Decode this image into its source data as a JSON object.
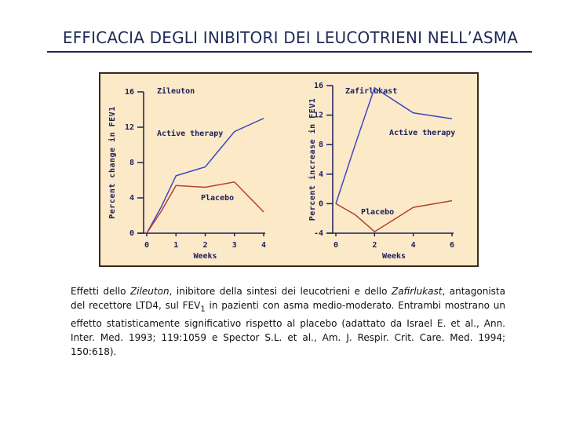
{
  "title": "EFFICACIA DEGLI INIBITORI DEI LEUCOTRIENI NELL’ASMA",
  "caption": [
    "Effetti dello ",
    "Zileuton",
    ", inibitore della sintesi dei leucotrieni e dello ",
    "Zafirlukast",
    ", antagonista del recettore LTD4, sul FEV",
    "1",
    " in  pazienti con asma medio-moderato. Entrambi mostrano un effetto statisticamente significativo rispetto al placebo (adattato da Israel E. et al., Ann. Inter. Med. 1993; 119:1059 e Spector S.L. et al., Am. J. Respir. Crit. Care. Med. 1994; 150:618)."
  ],
  "chart_data": [
    {
      "type": "line",
      "title": "Zileuton",
      "x_label": "Weeks",
      "y_label": "Percent change in FEV1",
      "x": [
        0,
        0.5,
        1,
        2,
        3,
        4
      ],
      "series": [
        {
          "name": "Active therapy",
          "color": "#3a48c4",
          "values": [
            0,
            3,
            6.5,
            7.5,
            11.5,
            13
          ]
        },
        {
          "name": "Placebo",
          "color": "#b2422e",
          "values": [
            0,
            2.5,
            5.4,
            5.2,
            5.8,
            2.4
          ]
        }
      ],
      "xlim": [
        0,
        4
      ],
      "xticks": [
        0,
        1,
        2,
        3,
        4
      ],
      "ylim": [
        0,
        16
      ],
      "yticks": [
        0,
        4,
        8,
        12,
        16
      ]
    },
    {
      "type": "line",
      "title": "Zafirlukast",
      "x_label": "Weeks",
      "y_label": "Percent increase in FEV1",
      "x": [
        0,
        1,
        2,
        4,
        6
      ],
      "series": [
        {
          "name": "Active therapy",
          "color": "#3a48c4",
          "values": [
            0,
            8,
            15.7,
            12.3,
            11.5
          ]
        },
        {
          "name": "Placebo",
          "color": "#b2422e",
          "values": [
            0,
            -1.5,
            -3.8,
            -0.5,
            0.4
          ]
        }
      ],
      "xlim": [
        0,
        6
      ],
      "xticks": [
        0,
        2,
        4,
        6
      ],
      "ylim": [
        -4,
        16
      ],
      "yticks": [
        -4,
        0,
        4,
        8,
        12,
        16
      ]
    }
  ]
}
